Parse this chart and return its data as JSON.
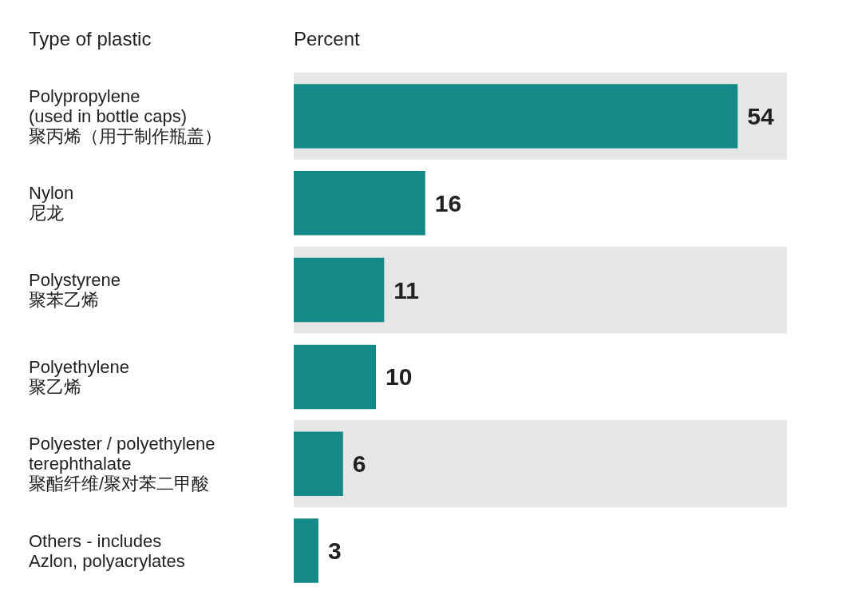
{
  "chart_data": {
    "type": "bar",
    "orientation": "horizontal",
    "ylabel": "Type of plastic",
    "xlabel": "Percent",
    "categories": [
      "Polypropylene\n(used in bottle caps)\n聚丙烯（用于制作瓶盖）",
      "Nylon\n尼龙",
      "Polystyrene\n聚苯乙烯",
      "Polyethylene\n聚乙烯",
      "Polyester / polyethylene\nterephthalate\n聚酯纤维/聚对苯二甲酸",
      "Others - includes\nAzlon, polyacrylates"
    ],
    "values": [
      54,
      16,
      11,
      10,
      6,
      3
    ],
    "color": "#138a87",
    "xlim": [
      0,
      60
    ],
    "data_labels": true,
    "tick_labels": "y"
  }
}
